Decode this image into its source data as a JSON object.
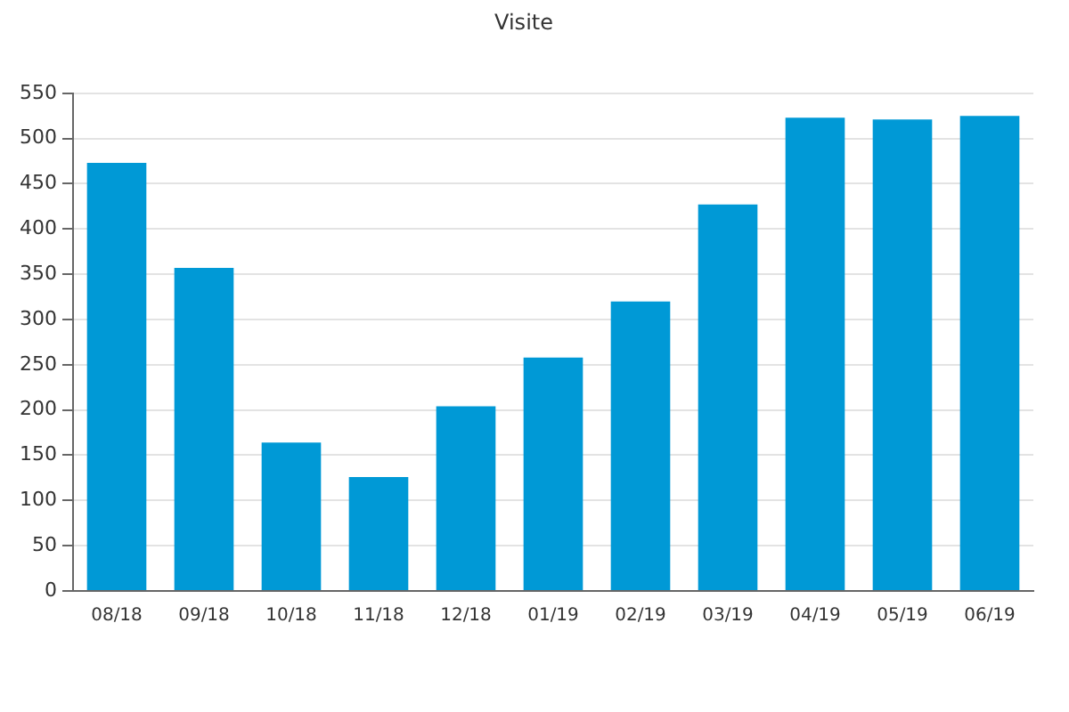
{
  "chart_data": {
    "type": "bar",
    "title": "Visite",
    "categories": [
      "08/18",
      "09/18",
      "10/18",
      "11/18",
      "12/18",
      "01/19",
      "02/19",
      "03/19",
      "04/19",
      "05/19",
      "06/19"
    ],
    "values": [
      473,
      357,
      164,
      126,
      204,
      258,
      320,
      427,
      523,
      521,
      525
    ],
    "color": "#0099d6",
    "ylim": [
      0,
      550
    ],
    "yticks": [
      0,
      50,
      100,
      150,
      200,
      250,
      300,
      350,
      400,
      450,
      500,
      550
    ],
    "grid": "y"
  }
}
